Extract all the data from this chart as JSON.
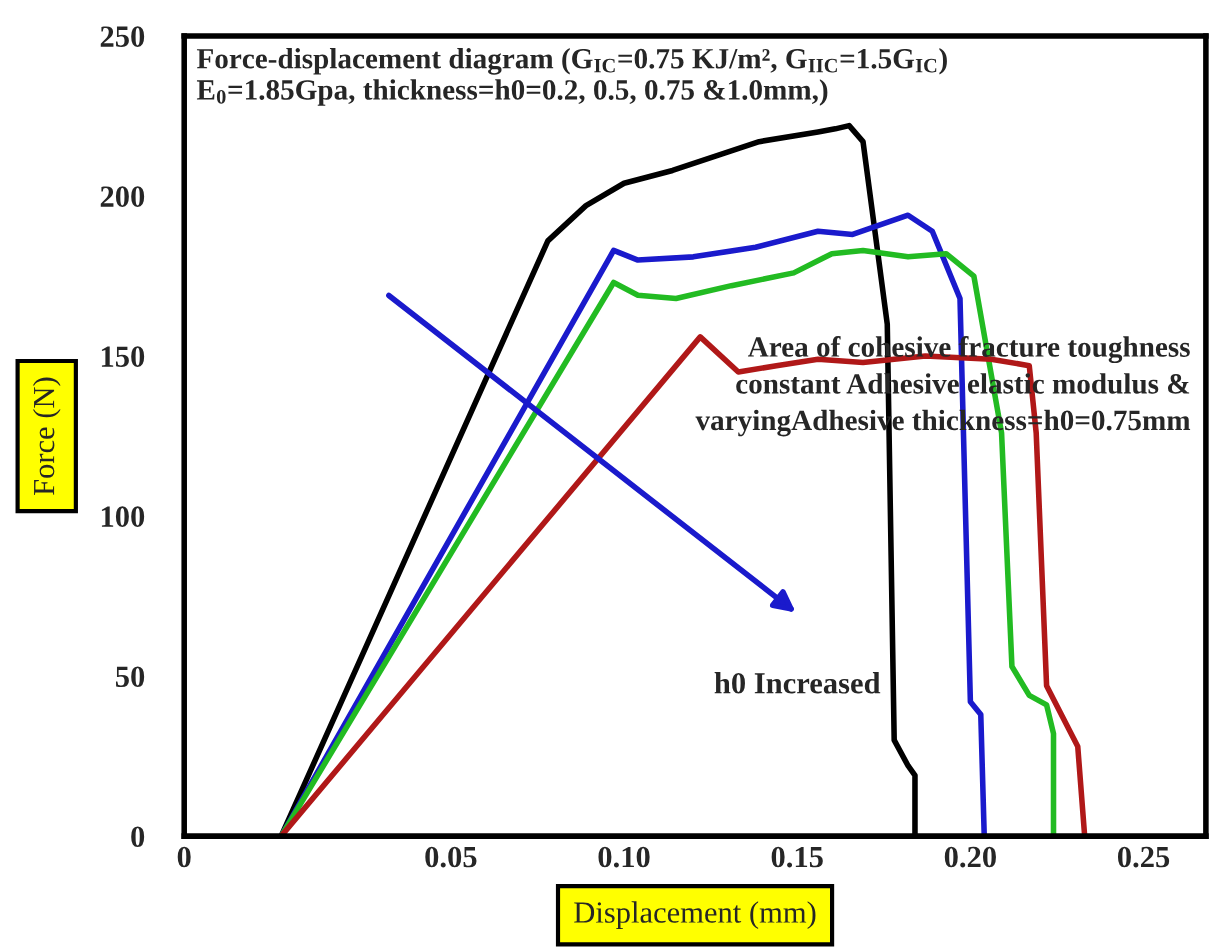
{
  "chart_data": {
    "type": "line",
    "title": "Force-displacement diagram (G$_{IC}$=0.75 KJ/m², G$_{IIC}$=1.5G$_{IC}$)\nE$_{0}$=1.85Gpa, thickness=h0=0.2, 0.5, 0.75 &1.0mm,)",
    "xlabel": "Displacement (mm)",
    "ylabel": "Force (N)",
    "series": [
      {
        "color": "#000000",
        "x": [
          0.001,
          0.078,
          0.089,
          0.1,
          0.114,
          0.139,
          0.156,
          0.161,
          0.165,
          0.169,
          0.176,
          0.178,
          0.182,
          0.184,
          0.184
        ],
        "values": [
          0,
          186,
          197,
          204,
          208,
          217,
          220,
          221,
          222,
          217,
          160,
          30,
          22,
          19,
          0
        ]
      },
      {
        "color": "#1a1acc",
        "x": [
          0.001,
          0.097,
          0.104,
          0.12,
          0.138,
          0.156,
          0.166,
          0.182,
          0.189,
          0.197,
          0.2,
          0.203,
          0.204
        ],
        "values": [
          0,
          183,
          180,
          181,
          184,
          189,
          188,
          194,
          189,
          168,
          42,
          38,
          0
        ]
      },
      {
        "color": "#22bb22",
        "x": [
          0.001,
          0.097,
          0.104,
          0.115,
          0.131,
          0.149,
          0.16,
          0.169,
          0.182,
          0.193,
          0.201,
          0.209,
          0.212,
          0.217,
          0.222,
          0.224,
          0.224
        ],
        "values": [
          0,
          173,
          169,
          168,
          172,
          176,
          182,
          183,
          181,
          182,
          175,
          126,
          53,
          44,
          41,
          32,
          0
        ]
      },
      {
        "color": "#b01818",
        "x": [
          0.001,
          0.122,
          0.133,
          0.144,
          0.156,
          0.169,
          0.187,
          0.206,
          0.217,
          0.219,
          0.222,
          0.231,
          0.233
        ],
        "values": [
          0,
          156,
          145,
          147,
          149,
          148,
          150,
          149,
          147,
          126,
          47,
          28,
          0
        ]
      }
    ],
    "annotations": [
      "h0 Increased",
      "Area of cohesive fracture toughness\nconstant Adhesive elastic modulus &\nvaryingAdhesive thickness=h0=0.75mm"
    ],
    "xlim": [
      -0.027,
      0.268
    ],
    "ylim": [
      0,
      250
    ],
    "xticks": [
      {
        "value": -0.027,
        "label": "0"
      },
      0.05,
      {
        "value": 0.1,
        "label": "0.10"
      },
      0.15,
      {
        "value": 0.2,
        "label": "0.20"
      },
      0.25
    ],
    "yticks": [
      0,
      50,
      100,
      150,
      200,
      250
    ],
    "grid": false,
    "legend": false,
    "marker": "none",
    "line_style": "solid"
  }
}
